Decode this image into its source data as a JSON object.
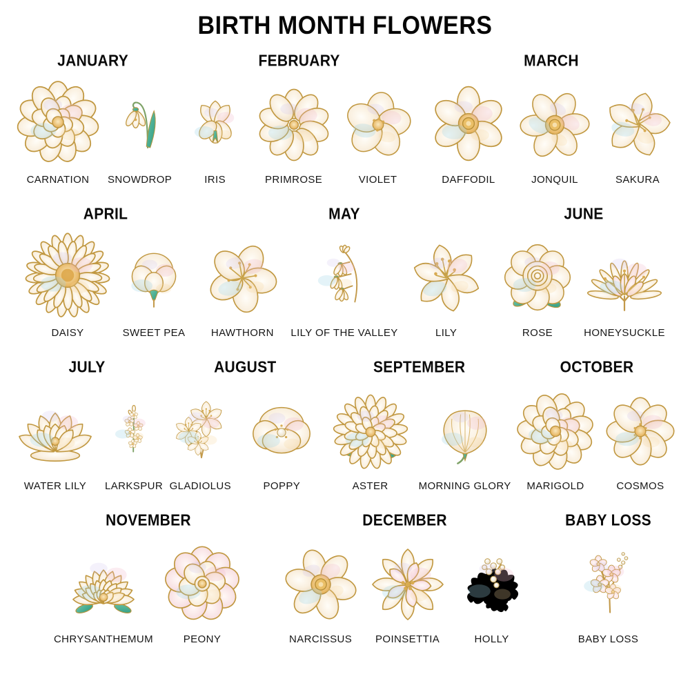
{
  "title": "BIRTH MONTH FLOWERS",
  "rows": [
    {
      "groups": [
        {
          "month": "JANUARY",
          "flowers": [
            {
              "label": "CARNATION",
              "icon": "carnation"
            },
            {
              "label": "SNOWDROP",
              "icon": "snowdrop"
            }
          ]
        },
        {
          "month": "FEBRUARY",
          "flowers": [
            {
              "label": "IRIS",
              "icon": "iris"
            },
            {
              "label": "PRIMROSE",
              "icon": "primrose"
            },
            {
              "label": "VIOLET",
              "icon": "violet"
            }
          ]
        },
        {
          "month": "MARCH",
          "flowers": [
            {
              "label": "DAFFODIL",
              "icon": "daffodil"
            },
            {
              "label": "JONQUIL",
              "icon": "jonquil"
            },
            {
              "label": "SAKURA",
              "icon": "sakura"
            }
          ]
        }
      ]
    },
    {
      "groups": [
        {
          "month": "APRIL",
          "flowers": [
            {
              "label": "DAISY",
              "icon": "daisy"
            },
            {
              "label": "SWEET PEA",
              "icon": "sweet-pea"
            }
          ]
        },
        {
          "month": "MAY",
          "flowers": [
            {
              "label": "HAWTHORN",
              "icon": "hawthorn"
            },
            {
              "label": "LILY OF THE VALLEY",
              "icon": "lily-of-the-valley"
            },
            {
              "label": "LILY",
              "icon": "lily"
            }
          ]
        },
        {
          "month": "JUNE",
          "flowers": [
            {
              "label": "ROSE",
              "icon": "rose"
            },
            {
              "label": "HONEYSUCKLE",
              "icon": "honeysuckle"
            }
          ]
        }
      ]
    },
    {
      "groups": [
        {
          "month": "JULY",
          "flowers": [
            {
              "label": "WATER LILY",
              "icon": "water-lily"
            },
            {
              "label": "LARKSPUR",
              "icon": "larkspur"
            }
          ]
        },
        {
          "month": "AUGUST",
          "flowers": [
            {
              "label": "GLADIOLUS",
              "icon": "gladiolus"
            },
            {
              "label": "POPPY",
              "icon": "poppy"
            }
          ]
        },
        {
          "month": "SEPTEMBER",
          "flowers": [
            {
              "label": "ASTER",
              "icon": "aster"
            },
            {
              "label": "MORNING GLORY",
              "icon": "morning-glory"
            }
          ]
        },
        {
          "month": "OCTOBER",
          "flowers": [
            {
              "label": "MARIGOLD",
              "icon": "marigold"
            },
            {
              "label": "COSMOS",
              "icon": "cosmos"
            }
          ]
        }
      ]
    },
    {
      "groups": [
        {
          "month": "NOVEMBER",
          "flowers": [
            {
              "label": "CHRYSANTHEMUM",
              "icon": "chrysanthemum"
            },
            {
              "label": "PEONY",
              "icon": "peony"
            }
          ]
        },
        {
          "month": "DECEMBER",
          "flowers": [
            {
              "label": "NARCISSUS",
              "icon": "narcissus"
            },
            {
              "label": "POINSETTIA",
              "icon": "poinsettia"
            },
            {
              "label": "HOLLY",
              "icon": "holly"
            }
          ]
        },
        {
          "month": "BABY LOSS",
          "flowers": [
            {
              "label": "BABY LOSS",
              "icon": "baby-loss"
            }
          ]
        }
      ]
    }
  ],
  "style_colors": {
    "background": "#ffffff",
    "text": "#0a0a0a",
    "petal_cream": "#f8eedd",
    "petal_highlight": "#fffdf8",
    "outline_gold": "#c0973f",
    "center_gold": "#e8b44f",
    "tint_pink": "#f2b9cd",
    "tint_blue": "#9fd4e6",
    "tint_lavender": "#cfbded",
    "leaf_teal": "#2e9c82",
    "stem_green": "#7fa368",
    "pearl": "#f4ecda"
  }
}
